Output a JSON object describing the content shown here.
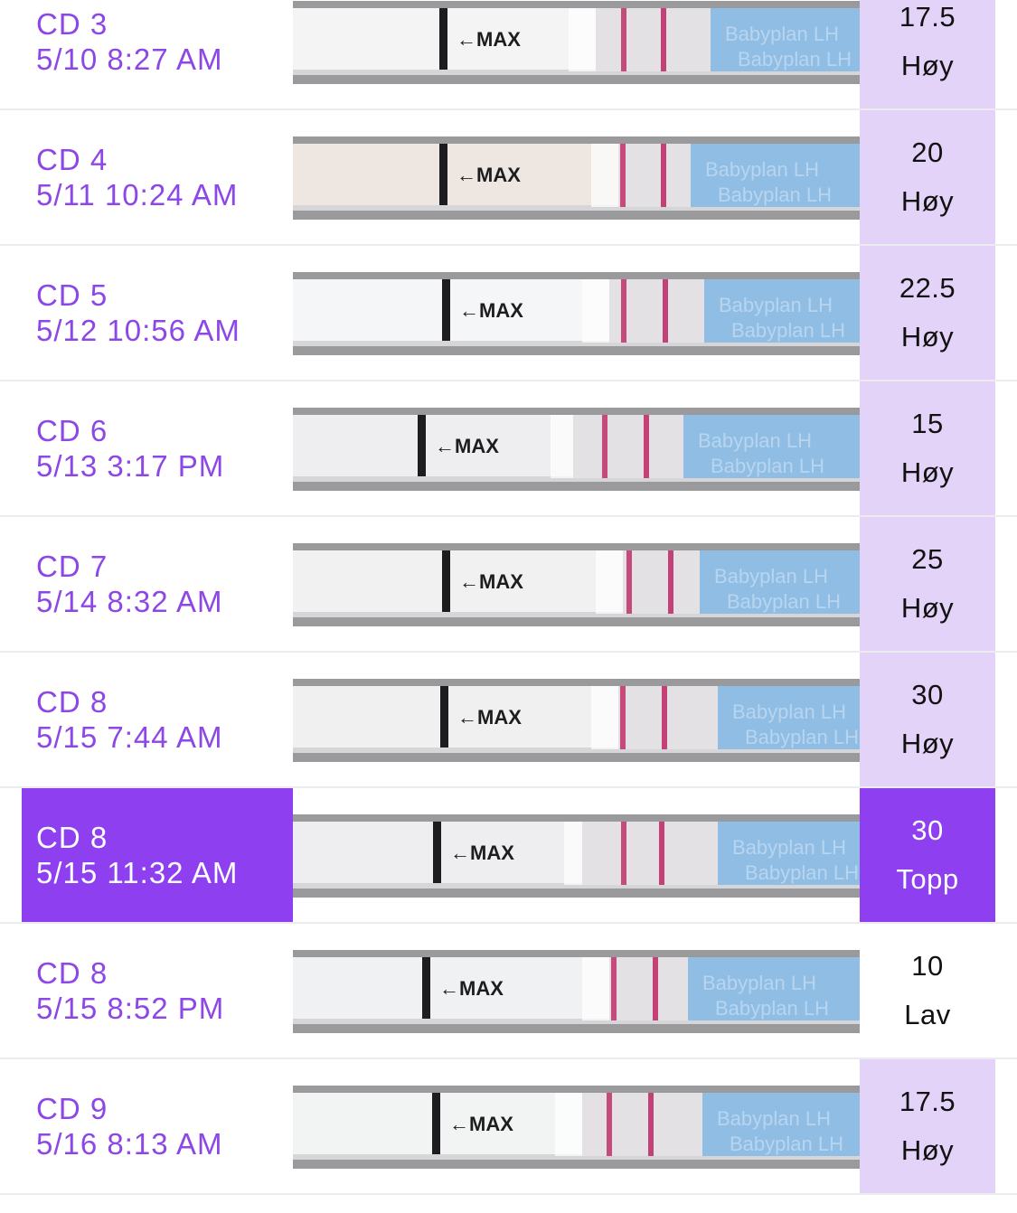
{
  "entries": [
    {
      "cycle_day": "CD 3",
      "datetime": "5/10 8:27 AM",
      "value": "17.5",
      "level": "Høy",
      "strip": {
        "variant": "a",
        "bg": "#f3f4f3",
        "lines": 2
      }
    },
    {
      "cycle_day": "CD 4",
      "datetime": "5/11 10:24 AM",
      "value": "20",
      "level": "Høy",
      "strip": {
        "variant": "b",
        "bg": "#ede6e1",
        "lines": 2
      }
    },
    {
      "cycle_day": "CD 5",
      "datetime": "5/12 10:56 AM",
      "value": "22.5",
      "level": "Høy",
      "strip": {
        "variant": "c",
        "bg": "#f5f6f7",
        "lines": 2
      }
    },
    {
      "cycle_day": "CD 6",
      "datetime": "5/13 3:17 PM",
      "value": "15",
      "level": "Høy",
      "strip": {
        "variant": "d",
        "bg": "#eeeef0",
        "lines": 2
      }
    },
    {
      "cycle_day": "CD 7",
      "datetime": "5/14 8:32 AM",
      "value": "25",
      "level": "Høy",
      "strip": {
        "variant": "e",
        "bg": "#f1f1f2",
        "lines": 2
      }
    },
    {
      "cycle_day": "CD 8",
      "datetime": "5/15 7:44 AM",
      "value": "30",
      "level": "Høy",
      "strip": {
        "variant": "f",
        "bg": "#eff0ef",
        "lines": 2
      }
    },
    {
      "cycle_day": "CD 8",
      "datetime": "5/15 11:32 AM",
      "value": "30",
      "level": "Topp",
      "selected": true,
      "strip": {
        "variant": "g",
        "bg": "#eeeef0",
        "lines": 2
      }
    },
    {
      "cycle_day": "CD 8",
      "datetime": "5/15 8:52 PM",
      "value": "10",
      "level": "Lav",
      "low": true,
      "strip": {
        "variant": "h",
        "bg": "#f0f1f3",
        "lines": 2
      }
    },
    {
      "cycle_day": "CD 9",
      "datetime": "5/16 8:13 AM",
      "value": "17.5",
      "level": "Høy",
      "strip": {
        "variant": "i",
        "bg": "#f2f3f3",
        "lines": 2
      }
    }
  ],
  "strip_text": {
    "max_label": "←MAX",
    "brand": "Babyplan LH"
  },
  "colors": {
    "accent": "#8e3ff0",
    "text_accent": "#8c47e6",
    "result_bg": "#e4d3f8",
    "test_line": "#c0306a",
    "strip_blue": "#8fbde4"
  }
}
